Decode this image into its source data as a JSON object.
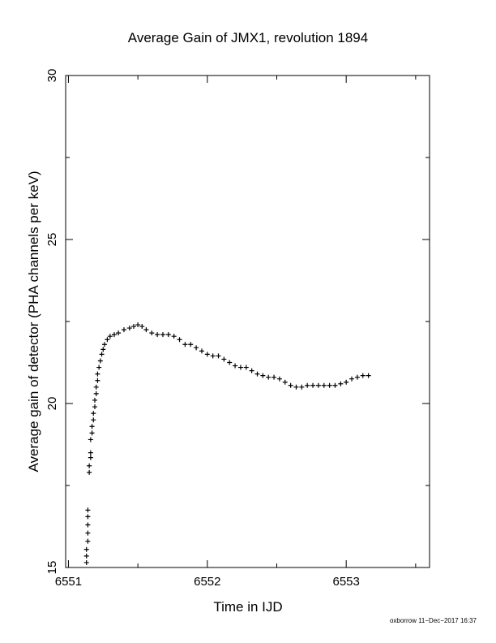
{
  "chart_data": {
    "type": "scatter",
    "title": "Average Gain of JMX1, revolution 1894",
    "xlabel": "Time in IJD",
    "ylabel": "Average gain of detector (PHA channels per keV)",
    "xlim": [
      6550.98,
      6553.6
    ],
    "ylim": [
      15,
      30
    ],
    "x_ticks": [
      6551,
      6552,
      6553
    ],
    "x_tick_labels": [
      "6551",
      "6552",
      "6553"
    ],
    "y_ticks": [
      15,
      20,
      25,
      30
    ],
    "y_tick_labels": [
      "15",
      "20",
      "25",
      "30"
    ],
    "marker": "+",
    "grid": false,
    "series": [
      {
        "points": [
          [
            6551.13,
            15.15
          ],
          [
            6551.13,
            15.35
          ],
          [
            6551.13,
            15.55
          ],
          [
            6551.14,
            15.8
          ],
          [
            6551.14,
            16.05
          ],
          [
            6551.14,
            16.3
          ],
          [
            6551.14,
            16.55
          ],
          [
            6551.14,
            16.75
          ],
          [
            6551.15,
            17.9
          ],
          [
            6551.15,
            18.1
          ],
          [
            6551.16,
            18.35
          ],
          [
            6551.16,
            18.5
          ],
          [
            6551.16,
            18.9
          ],
          [
            6551.17,
            19.1
          ],
          [
            6551.17,
            19.3
          ],
          [
            6551.18,
            19.5
          ],
          [
            6551.18,
            19.7
          ],
          [
            6551.19,
            19.9
          ],
          [
            6551.19,
            20.1
          ],
          [
            6551.2,
            20.3
          ],
          [
            6551.2,
            20.5
          ],
          [
            6551.21,
            20.7
          ],
          [
            6551.21,
            20.9
          ],
          [
            6551.22,
            21.1
          ],
          [
            6551.23,
            21.3
          ],
          [
            6551.24,
            21.5
          ],
          [
            6551.25,
            21.65
          ],
          [
            6551.26,
            21.8
          ],
          [
            6551.28,
            21.95
          ],
          [
            6551.3,
            22.05
          ],
          [
            6551.33,
            22.1
          ],
          [
            6551.36,
            22.15
          ],
          [
            6551.4,
            22.25
          ],
          [
            6551.44,
            22.3
          ],
          [
            6551.47,
            22.35
          ],
          [
            6551.5,
            22.4
          ],
          [
            6551.53,
            22.35
          ],
          [
            6551.56,
            22.25
          ],
          [
            6551.6,
            22.15
          ],
          [
            6551.64,
            22.1
          ],
          [
            6551.68,
            22.1
          ],
          [
            6551.72,
            22.1
          ],
          [
            6551.76,
            22.05
          ],
          [
            6551.8,
            21.95
          ],
          [
            6551.84,
            21.8
          ],
          [
            6551.88,
            21.8
          ],
          [
            6551.92,
            21.7
          ],
          [
            6551.96,
            21.6
          ],
          [
            6552.0,
            21.5
          ],
          [
            6552.04,
            21.45
          ],
          [
            6552.08,
            21.45
          ],
          [
            6552.12,
            21.35
          ],
          [
            6552.16,
            21.25
          ],
          [
            6552.2,
            21.15
          ],
          [
            6552.24,
            21.1
          ],
          [
            6552.28,
            21.1
          ],
          [
            6552.32,
            21.0
          ],
          [
            6552.36,
            20.9
          ],
          [
            6552.4,
            20.85
          ],
          [
            6552.44,
            20.8
          ],
          [
            6552.48,
            20.8
          ],
          [
            6552.52,
            20.75
          ],
          [
            6552.56,
            20.65
          ],
          [
            6552.6,
            20.55
          ],
          [
            6552.64,
            20.5
          ],
          [
            6552.68,
            20.5
          ],
          [
            6552.72,
            20.55
          ],
          [
            6552.76,
            20.55
          ],
          [
            6552.8,
            20.55
          ],
          [
            6552.84,
            20.55
          ],
          [
            6552.88,
            20.55
          ],
          [
            6552.92,
            20.55
          ],
          [
            6552.96,
            20.6
          ],
          [
            6553.0,
            20.65
          ],
          [
            6553.04,
            20.75
          ],
          [
            6553.08,
            20.8
          ],
          [
            6553.12,
            20.85
          ],
          [
            6553.16,
            20.85
          ]
        ]
      }
    ]
  },
  "footer": {
    "credit": "oxborrow 11−Dec−2017 16:37"
  }
}
